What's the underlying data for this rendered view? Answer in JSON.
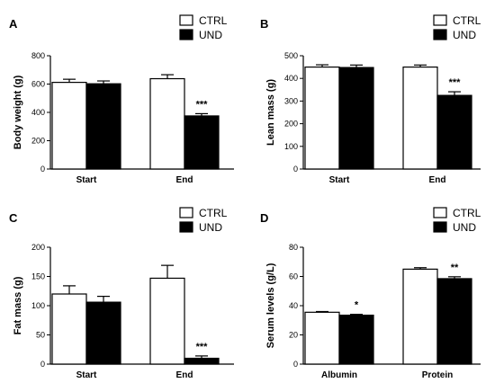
{
  "legend": {
    "ctrl_label": "CTRL",
    "und_label": "UND"
  },
  "series_colors": {
    "CTRL": "#ffffff",
    "UND": "#000000"
  },
  "chart_data": [
    {
      "panel": "A",
      "type": "bar",
      "ylabel": "Body weight (g)",
      "ylim": [
        0,
        800
      ],
      "yticks": [
        0,
        200,
        400,
        600,
        800
      ],
      "categories": [
        "Start",
        "End"
      ],
      "series": [
        {
          "name": "CTRL",
          "values": [
            612,
            638
          ],
          "errors": [
            22,
            28
          ]
        },
        {
          "name": "UND",
          "values": [
            602,
            375
          ],
          "errors": [
            20,
            16
          ]
        }
      ],
      "annotations": [
        "",
        "***"
      ]
    },
    {
      "panel": "B",
      "type": "bar",
      "ylabel": "Lean mass (g)",
      "ylim": [
        0,
        500
      ],
      "yticks": [
        0,
        100,
        200,
        300,
        400,
        500
      ],
      "categories": [
        "Start",
        "End"
      ],
      "series": [
        {
          "name": "CTRL",
          "values": [
            450,
            450
          ],
          "errors": [
            10,
            9
          ]
        },
        {
          "name": "UND",
          "values": [
            448,
            325
          ],
          "errors": [
            11,
            16
          ]
        }
      ],
      "annotations": [
        "",
        "***"
      ]
    },
    {
      "panel": "C",
      "type": "bar",
      "ylabel": "Fat mass (g)",
      "ylim": [
        0,
        200
      ],
      "yticks": [
        0,
        50,
        100,
        150,
        200
      ],
      "categories": [
        "Start",
        "End"
      ],
      "series": [
        {
          "name": "CTRL",
          "values": [
            120,
            147
          ],
          "errors": [
            14,
            22
          ]
        },
        {
          "name": "UND",
          "values": [
            106,
            10
          ],
          "errors": [
            10,
            4
          ]
        }
      ],
      "annotations": [
        "",
        "***"
      ]
    },
    {
      "panel": "D",
      "type": "bar",
      "ylabel": "Serum levels (g/L)",
      "ylim": [
        0,
        80
      ],
      "yticks": [
        0,
        20,
        40,
        60,
        80
      ],
      "categories": [
        "Albumin",
        "Protein"
      ],
      "series": [
        {
          "name": "CTRL",
          "values": [
            35.5,
            65
          ],
          "errors": [
            0.5,
            1
          ]
        },
        {
          "name": "UND",
          "values": [
            33.5,
            58.5
          ],
          "errors": [
            0.6,
            1.3
          ]
        }
      ],
      "annotations": [
        "*",
        "**"
      ]
    }
  ]
}
